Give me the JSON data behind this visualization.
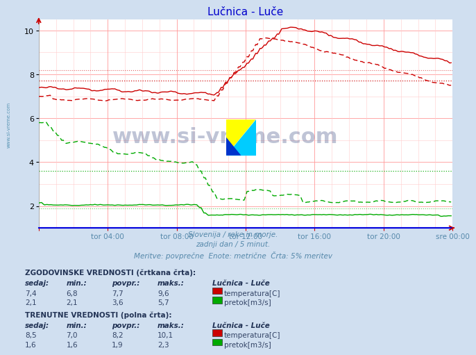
{
  "title": "Lučnica - Luče",
  "title_color": "#0000cc",
  "bg_color": "#d0dff0",
  "plot_bg_color": "#ffffff",
  "grid_color_major": "#ff9999",
  "grid_color_minor": "#ffcccc",
  "xlabel_color": "#5588aa",
  "n_points": 288,
  "subtitle1": "Slovenija / reke in morje.",
  "subtitle2": "zadnji dan / 5 minut.",
  "subtitle3": "Meritve: povprečne  Enote: metrične  Črta: 5% meritev",
  "watermark": "www.si-vreme.com",
  "table_text_color": "#334466",
  "hist_label": "ZGODOVINSKE VREDNOSTI (črtkana črta):",
  "curr_label": "TRENUTNE VREDNOSTI (polna črta):",
  "hist_temp": [
    7.4,
    6.8,
    7.7,
    9.6
  ],
  "hist_flow": [
    2.1,
    2.1,
    3.6,
    5.7
  ],
  "curr_temp": [
    8.5,
    7.0,
    8.2,
    10.1
  ],
  "curr_flow": [
    1.6,
    1.6,
    1.9,
    2.3
  ],
  "temp_color": "#cc0000",
  "flow_color": "#00aa00",
  "axis_line_color": "#0000dd",
  "tick_color": "#cc0000",
  "sidebar_color": "#4488aa",
  "sidebar_text": "www.si-vreme.com",
  "xticklabels": [
    "tor 04:00",
    "tor 08:00",
    "tor 12:00",
    "tor 16:00",
    "tor 20:00",
    "sre 00:00"
  ],
  "ymin": 1.0,
  "ymax": 10.5,
  "yticks": [
    2,
    4,
    6,
    8,
    10
  ],
  "logo_yellow": "#ffff00",
  "logo_cyan": "#00ccff",
  "logo_blue": "#0033cc"
}
